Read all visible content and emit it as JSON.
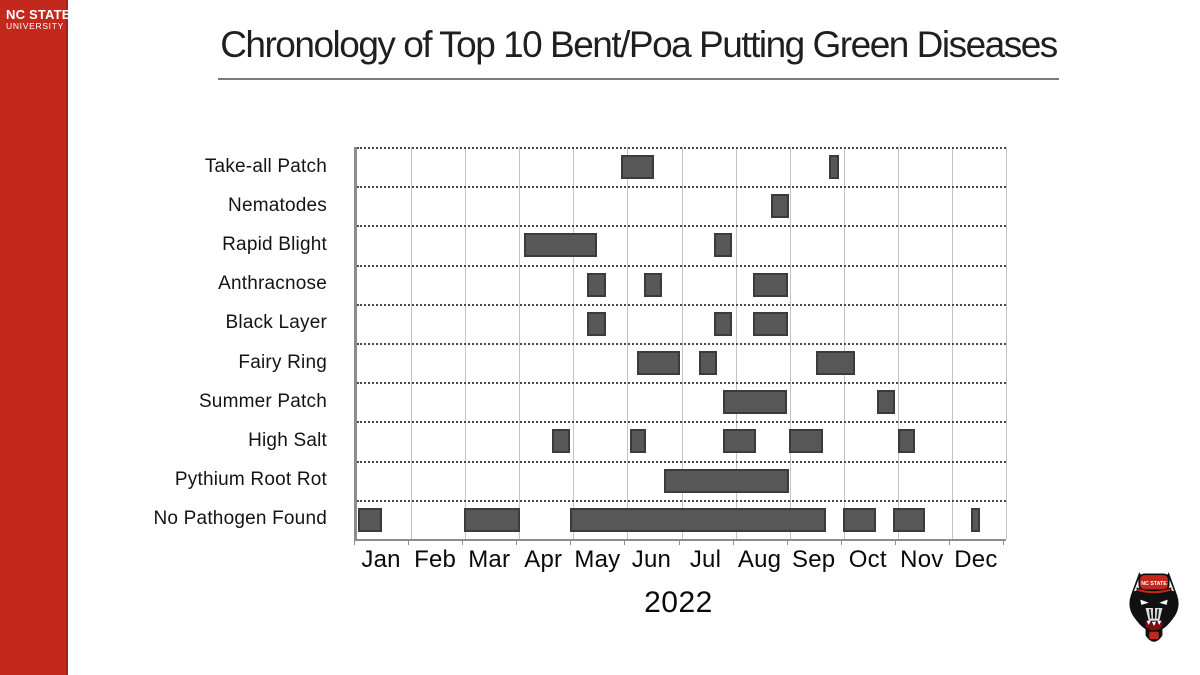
{
  "brand": {
    "line1": "NC STATE",
    "line2": "UNIVERSITY",
    "red": "#C3281C",
    "wolf_logo": "nc-state-wolf-head-mascot"
  },
  "chart_data": {
    "type": "bar",
    "variant": "horizontal-gantt",
    "title": "Chronology of Top 10 Bent/Poa Putting Green Diseases",
    "xlabel": "2022",
    "x": {
      "unit": "decimal months (0 = Jan 1, 12 = Dec 31)",
      "min": 0,
      "max": 12,
      "tick_labels": [
        "Jan",
        "Feb",
        "Mar",
        "Apr",
        "May",
        "Jun",
        "Jul",
        "Aug",
        "Sep",
        "Oct",
        "Nov",
        "Dec"
      ]
    },
    "grid": {
      "vertical": "solid monthly gridlines",
      "horizontal": "dotted row separators"
    },
    "bar_color": "#575757",
    "bar_border_color": "#3b3b3b",
    "rows": [
      {
        "label": "Take-all Patch",
        "intervals": [
          [
            4.88,
            5.49
          ],
          [
            8.73,
            8.91
          ]
        ]
      },
      {
        "label": "Nematodes",
        "intervals": [
          [
            7.66,
            7.99
          ]
        ]
      },
      {
        "label": "Rapid Blight",
        "intervals": [
          [
            3.08,
            4.44
          ],
          [
            6.61,
            6.93
          ]
        ]
      },
      {
        "label": "Anthracnose",
        "intervals": [
          [
            4.26,
            4.6
          ],
          [
            5.31,
            5.64
          ],
          [
            7.33,
            7.97
          ]
        ]
      },
      {
        "label": "Black Layer",
        "intervals": [
          [
            4.26,
            4.6
          ],
          [
            6.61,
            6.93
          ],
          [
            7.33,
            7.97
          ]
        ]
      },
      {
        "label": "Fairy Ring",
        "intervals": [
          [
            5.18,
            5.97
          ],
          [
            6.32,
            6.66
          ],
          [
            8.48,
            9.2
          ]
        ]
      },
      {
        "label": "Summer Patch",
        "intervals": [
          [
            6.76,
            7.95
          ],
          [
            9.62,
            9.94
          ]
        ]
      },
      {
        "label": "High Salt",
        "intervals": [
          [
            3.61,
            3.94
          ],
          [
            5.05,
            5.35
          ],
          [
            6.76,
            7.38
          ],
          [
            7.99,
            8.62
          ],
          [
            10.0,
            10.31
          ]
        ]
      },
      {
        "label": "Pythium Root Rot",
        "intervals": [
          [
            5.68,
            7.99
          ]
        ]
      },
      {
        "label": "No Pathogen Found",
        "intervals": [
          [
            0.02,
            0.46
          ],
          [
            1.98,
            3.01
          ],
          [
            3.93,
            8.67
          ],
          [
            8.99,
            9.59
          ],
          [
            9.91,
            10.5
          ],
          [
            11.35,
            11.52
          ]
        ]
      }
    ]
  }
}
